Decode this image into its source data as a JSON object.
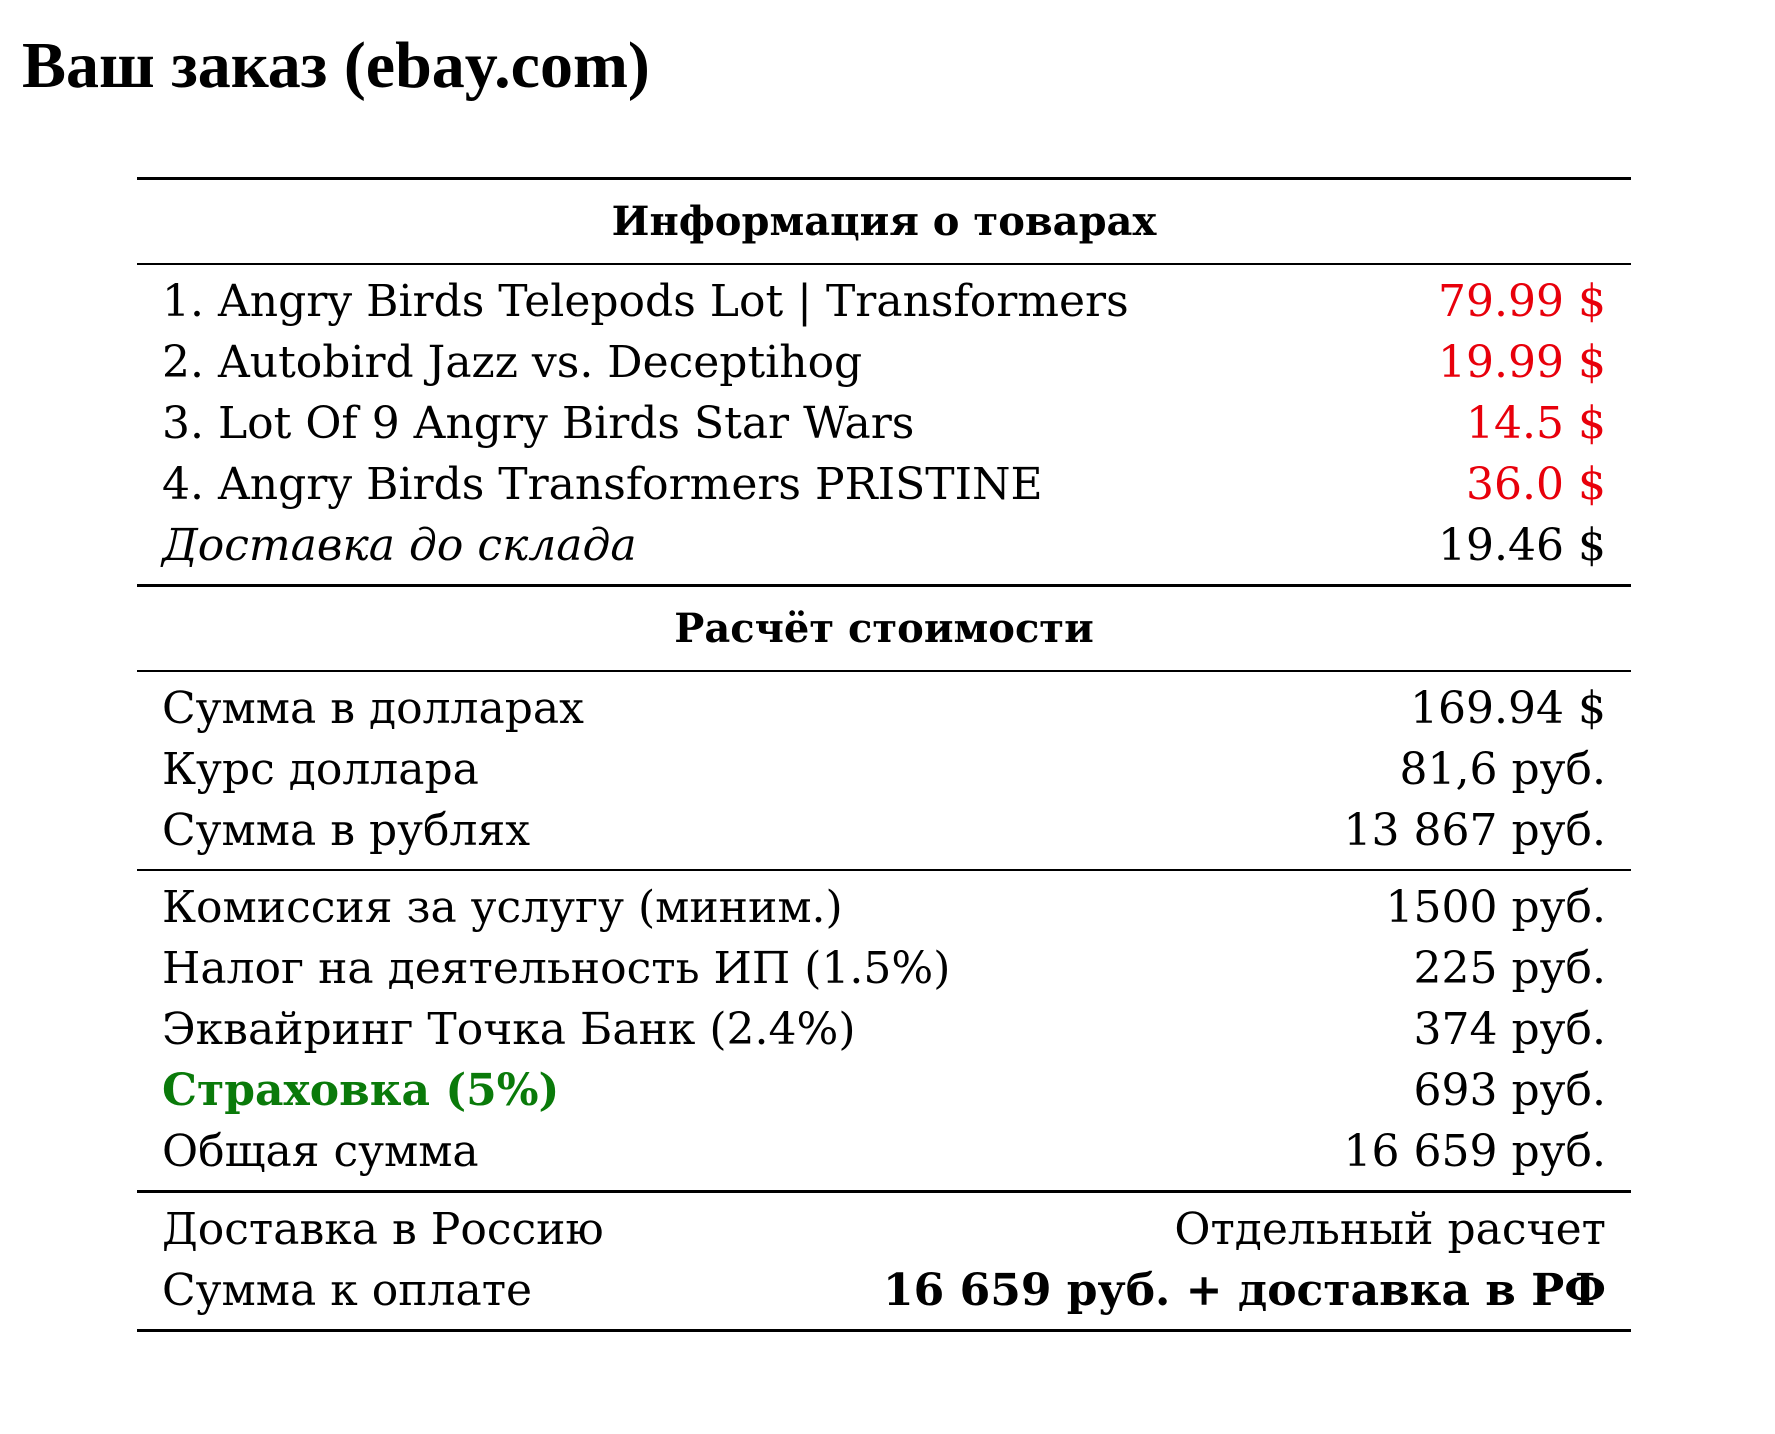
{
  "title": "Ваш заказ (ebay.com)",
  "items_section": {
    "header": "Информация о товарах",
    "items": [
      {
        "label": "1. Angry Birds Telepods Lot | Transformers",
        "price": "79.99 $"
      },
      {
        "label": "2. Autobird Jazz vs. Deceptihog",
        "price": "19.99 $"
      },
      {
        "label": "3. Lot Of 9 Angry Birds Star Wars",
        "price": "14.5 $"
      },
      {
        "label": "4. Angry Birds Transformers PRISTINE",
        "price": "36.0 $"
      }
    ],
    "shipping": {
      "label": "Доставка до склада",
      "value": "19.46 $"
    }
  },
  "calc_section": {
    "header": "Расчёт стоимости",
    "conversion": [
      {
        "label": "Сумма в долларах",
        "value": "169.94 $"
      },
      {
        "label": "Курс доллара",
        "value": "81,6 руб."
      },
      {
        "label": "Сумма в рублях",
        "value": "13 867 руб."
      }
    ],
    "fees": [
      {
        "label": "Комиссия за услугу (миним.)",
        "value": "1500 руб."
      },
      {
        "label": "Налог на деятельность ИП (1.5%)",
        "value": "225 руб."
      },
      {
        "label": "Эквайринг Точка Банк (2.4%)",
        "value": "374 руб."
      },
      {
        "label": "Страховка (5%)",
        "value": "693 руб."
      },
      {
        "label": "Общая сумма",
        "value": "16 659 руб."
      }
    ],
    "final": [
      {
        "label": "Доставка в Россию",
        "value": "Отдельный расчет"
      },
      {
        "label": "Сумма к оплате",
        "value": "16 659 руб. + доставка в РФ"
      }
    ]
  },
  "colors": {
    "price_red": "#e8000b",
    "insurance_green": "#0a7a0a"
  }
}
